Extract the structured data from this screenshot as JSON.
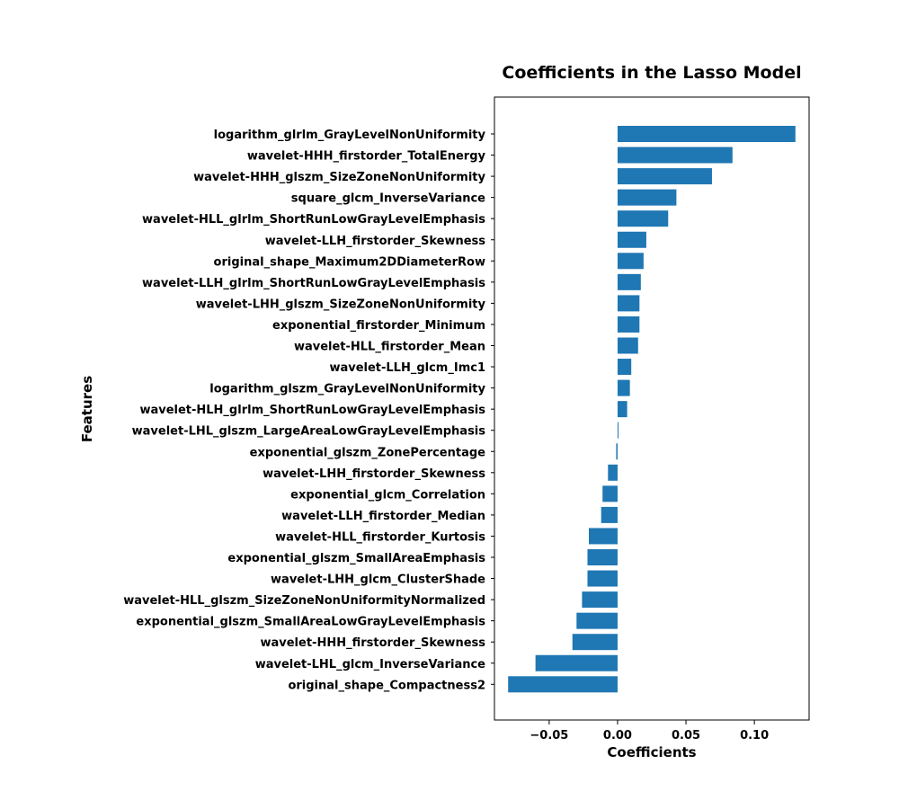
{
  "chart_data": {
    "type": "bar",
    "orientation": "horizontal",
    "title": "Coefficients in the Lasso Model",
    "xlabel": "Coefficients",
    "ylabel": "Features",
    "xlim": [
      -0.09,
      0.14
    ],
    "xticks": [
      -0.05,
      0.0,
      0.05,
      0.1
    ],
    "xtick_labels": [
      "−0.05",
      "0.00",
      "0.05",
      "0.10"
    ],
    "grid": false,
    "bar_color": "#1f77b4",
    "categories": [
      "logarithm_glrlm_GrayLevelNonUniformity",
      "wavelet-HHH_firstorder_TotalEnergy",
      "wavelet-HHH_glszm_SizeZoneNonUniformity",
      "square_glcm_InverseVariance",
      "wavelet-HLL_glrlm_ShortRunLowGrayLevelEmphasis",
      "wavelet-LLH_firstorder_Skewness",
      "original_shape_Maximum2DDiameterRow",
      "wavelet-LLH_glrlm_ShortRunLowGrayLevelEmphasis",
      "wavelet-LHH_glszm_SizeZoneNonUniformity",
      "exponential_firstorder_Minimum",
      "wavelet-HLL_firstorder_Mean",
      "wavelet-LLH_glcm_Imc1",
      "logarithm_glszm_GrayLevelNonUniformity",
      "wavelet-HLH_glrlm_ShortRunLowGrayLevelEmphasis",
      "wavelet-LHL_glszm_LargeAreaLowGrayLevelEmphasis",
      "exponential_glszm_ZonePercentage",
      "wavelet-LHH_firstorder_Skewness",
      "exponential_glcm_Correlation",
      "wavelet-LLH_firstorder_Median",
      "wavelet-HLL_firstorder_Kurtosis",
      "exponential_glszm_SmallAreaEmphasis",
      "wavelet-LHH_glcm_ClusterShade",
      "wavelet-HLL_glszm_SizeZoneNonUniformityNormalized",
      "exponential_glszm_SmallAreaLowGrayLevelEmphasis",
      "wavelet-HHH_firstorder_Skewness",
      "wavelet-LHL_glcm_InverseVariance",
      "original_shape_Compactness2"
    ],
    "values": [
      0.13,
      0.084,
      0.069,
      0.043,
      0.037,
      0.021,
      0.019,
      0.017,
      0.016,
      0.016,
      0.015,
      0.01,
      0.009,
      0.007,
      0.0005,
      -0.001,
      -0.007,
      -0.011,
      -0.012,
      -0.021,
      -0.022,
      -0.022,
      -0.026,
      -0.03,
      -0.033,
      -0.06,
      -0.08
    ]
  }
}
